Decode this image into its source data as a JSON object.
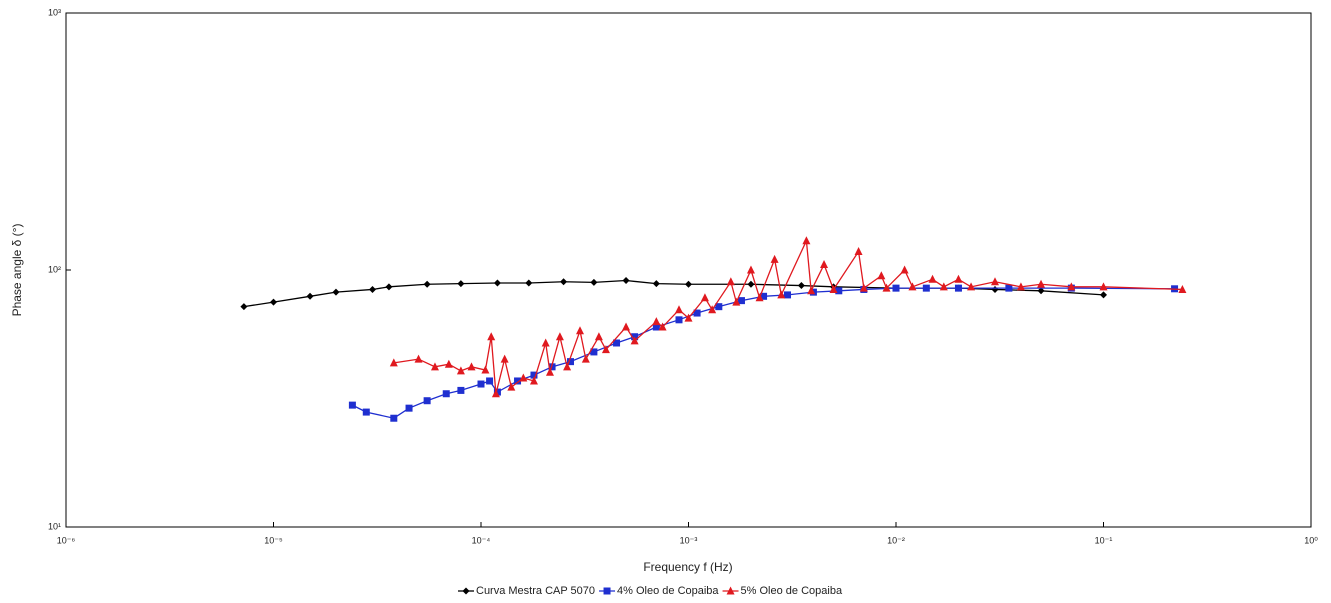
{
  "chart_data": {
    "type": "line",
    "x_label": "Frequency f (Hz)",
    "y_label": "Phase angle δ (°)",
    "xscale": "log",
    "yscale": "log",
    "xlim": [
      1e-06,
      1
    ],
    "ylim": [
      10,
      1000
    ],
    "xticks": [
      {
        "value": 1e-06,
        "label": "10⁻⁶"
      },
      {
        "value": 1e-05,
        "label": "10⁻⁵"
      },
      {
        "value": 0.0001,
        "label": "10⁻⁴"
      },
      {
        "value": 0.001,
        "label": "10⁻³"
      },
      {
        "value": 0.01,
        "label": "10⁻²"
      },
      {
        "value": 0.1,
        "label": "10⁻¹"
      },
      {
        "value": 1,
        "label": "10⁰"
      }
    ],
    "yticks": [
      {
        "value": 10,
        "label": "10¹"
      },
      {
        "value": 100,
        "label": "10²"
      },
      {
        "value": 1000,
        "label": "10³"
      }
    ],
    "series": [
      {
        "name": "Curva Mestra CAP 5070",
        "color": "#000000",
        "marker": "diamond",
        "x": [
          7.2e-06,
          1e-05,
          1.5e-05,
          2e-05,
          3e-05,
          3.6e-05,
          5.5e-05,
          8e-05,
          0.00012,
          0.00017,
          0.00025,
          0.00035,
          0.0005,
          0.0007,
          0.001,
          0.002,
          0.0035,
          0.005,
          0.01,
          0.02,
          0.03,
          0.05,
          0.1
        ],
        "values": [
          72,
          75,
          79,
          82,
          84,
          86,
          88,
          88.5,
          89,
          89,
          90,
          89.5,
          91,
          88.5,
          88,
          88,
          87,
          86,
          85,
          85,
          84,
          83,
          80
        ]
      },
      {
        "name": "4% Oleo de Copaiba",
        "color": "#1f2fd0",
        "marker": "square",
        "x": [
          2.4e-05,
          2.8e-05,
          3.8e-05,
          4.5e-05,
          5.5e-05,
          6.8e-05,
          8e-05,
          0.0001,
          0.00011,
          0.00012,
          0.00015,
          0.00018,
          0.00022,
          0.00027,
          0.00035,
          0.00045,
          0.00055,
          0.0007,
          0.0009,
          0.0011,
          0.0014,
          0.0018,
          0.0023,
          0.003,
          0.004,
          0.0053,
          0.007,
          0.01,
          0.014,
          0.02,
          0.035,
          0.07,
          0.22
        ],
        "values": [
          29.8,
          28,
          26.5,
          29,
          31,
          33,
          34,
          36,
          37,
          33.5,
          37,
          39,
          42,
          44,
          48,
          52,
          55,
          60,
          64,
          68,
          72,
          76,
          79,
          80,
          82,
          83,
          84,
          85,
          85,
          85,
          85,
          85,
          84.5
        ]
      },
      {
        "name": "5% Oleo de Copaiba",
        "color": "#e0191f",
        "marker": "triangle",
        "x": [
          3.8e-05,
          5e-05,
          6e-05,
          7e-05,
          8e-05,
          9e-05,
          0.000105,
          0.000112,
          0.000118,
          0.00013,
          0.00014,
          0.00016,
          0.00018,
          0.000205,
          0.000215,
          0.00024,
          0.00026,
          0.0003,
          0.00032,
          0.00037,
          0.0004,
          0.0005,
          0.00055,
          0.0007,
          0.00075,
          0.0009,
          0.001,
          0.0012,
          0.0013,
          0.0016,
          0.0017,
          0.002,
          0.0022,
          0.0026,
          0.0028,
          0.0037,
          0.0039,
          0.0045,
          0.005,
          0.0066,
          0.007,
          0.0085,
          0.009,
          0.011,
          0.012,
          0.015,
          0.017,
          0.02,
          0.023,
          0.03,
          0.04,
          0.05,
          0.07,
          0.1,
          0.24
        ],
        "values": [
          43.5,
          45,
          42,
          43,
          40.5,
          42,
          40.8,
          55,
          33,
          45,
          35,
          38,
          37,
          52,
          40,
          55,
          42,
          58,
          45,
          55,
          49,
          60,
          53,
          63,
          60,
          70,
          65,
          78,
          70,
          90,
          75,
          100,
          78,
          110,
          80,
          130,
          83,
          105,
          84,
          118,
          85,
          95,
          85,
          100,
          86,
          92,
          86,
          92,
          86,
          90,
          86,
          88,
          86,
          86,
          84
        ]
      }
    ]
  }
}
